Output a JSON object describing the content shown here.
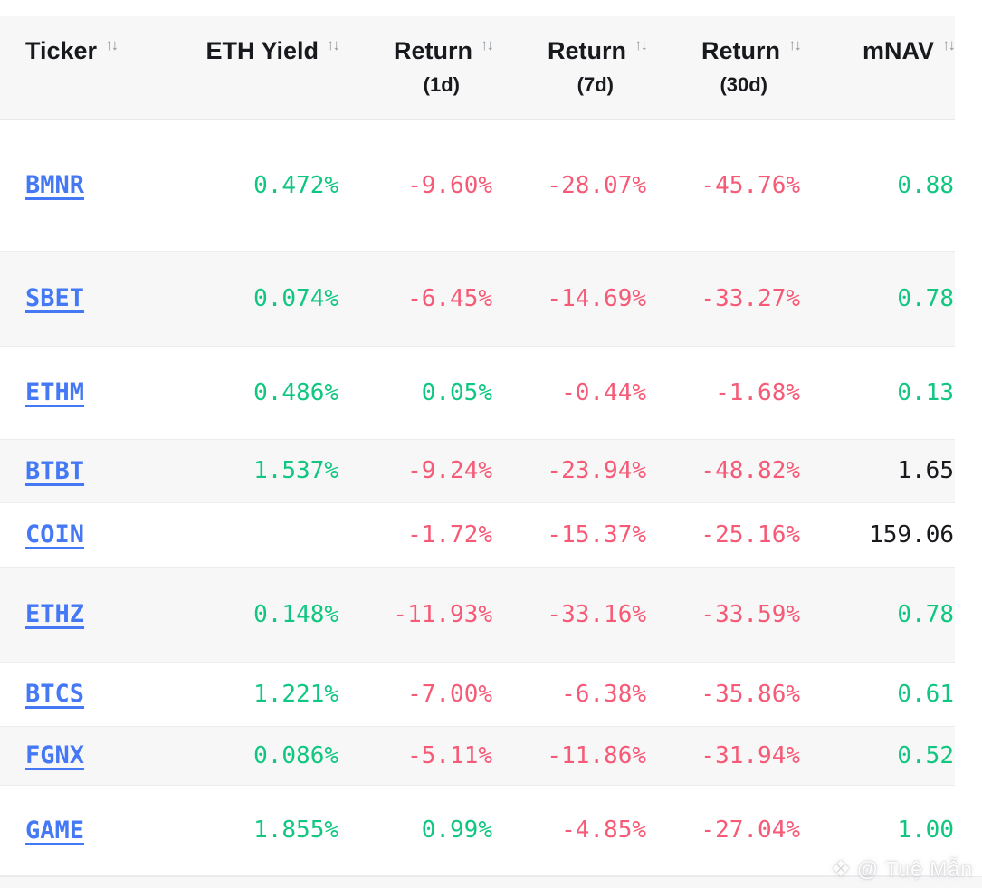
{
  "table": {
    "sort_icon": "↑↓",
    "columns": [
      {
        "key": "ticker",
        "label": "Ticker",
        "sub": "",
        "align": "left"
      },
      {
        "key": "eth_yield",
        "label": "ETH Yield",
        "sub": "",
        "align": "right"
      },
      {
        "key": "return_1d",
        "label": "Return",
        "sub": "(1d)",
        "align": "right"
      },
      {
        "key": "return_7d",
        "label": "Return",
        "sub": "(7d)",
        "align": "right"
      },
      {
        "key": "return_30d",
        "label": "Return",
        "sub": "(30d)",
        "align": "right"
      },
      {
        "key": "mnav",
        "label": "mNAV",
        "sub": "",
        "align": "right"
      }
    ],
    "rows": [
      {
        "ticker": "BMNR",
        "eth_yield": "0.472%",
        "return_1d": "-9.60%",
        "return_7d": "-28.07%",
        "return_30d": "-45.76%",
        "mnav": "0.88",
        "mnav_color": "green"
      },
      {
        "ticker": "SBET",
        "eth_yield": "0.074%",
        "return_1d": "-6.45%",
        "return_7d": "-14.69%",
        "return_30d": "-33.27%",
        "mnav": "0.78",
        "mnav_color": "green"
      },
      {
        "ticker": "ETHM",
        "eth_yield": "0.486%",
        "return_1d": "0.05%",
        "return_7d": "-0.44%",
        "return_30d": "-1.68%",
        "mnav": "0.13",
        "mnav_color": "green"
      },
      {
        "ticker": "BTBT",
        "eth_yield": "1.537%",
        "return_1d": "-9.24%",
        "return_7d": "-23.94%",
        "return_30d": "-48.82%",
        "mnav": "1.65",
        "mnav_color": "dark"
      },
      {
        "ticker": "COIN",
        "eth_yield": "",
        "return_1d": "-1.72%",
        "return_7d": "-15.37%",
        "return_30d": "-25.16%",
        "mnav": "159.06",
        "mnav_color": "dark"
      },
      {
        "ticker": "ETHZ",
        "eth_yield": "0.148%",
        "return_1d": "-11.93%",
        "return_7d": "-33.16%",
        "return_30d": "-33.59%",
        "mnav": "0.78",
        "mnav_color": "green"
      },
      {
        "ticker": "BTCS",
        "eth_yield": "1.221%",
        "return_1d": "-7.00%",
        "return_7d": "-6.38%",
        "return_30d": "-35.86%",
        "mnav": "0.61",
        "mnav_color": "green"
      },
      {
        "ticker": "FGNX",
        "eth_yield": "0.086%",
        "return_1d": "-5.11%",
        "return_7d": "-11.86%",
        "return_30d": "-31.94%",
        "mnav": "0.52",
        "mnav_color": "green"
      },
      {
        "ticker": "GAME",
        "eth_yield": "1.855%",
        "return_1d": "0.99%",
        "return_7d": "-4.85%",
        "return_30d": "-27.04%",
        "mnav": "1.00",
        "mnav_color": "green"
      }
    ]
  },
  "colors": {
    "positive": "#10c781",
    "negative": "#f65a76",
    "link_blue": "#4478f5",
    "dark_text": "#17191c",
    "band_gray": "#f7f7f8"
  },
  "watermark": {
    "icon": "❖",
    "text": "@ Tuệ Mẫn"
  }
}
